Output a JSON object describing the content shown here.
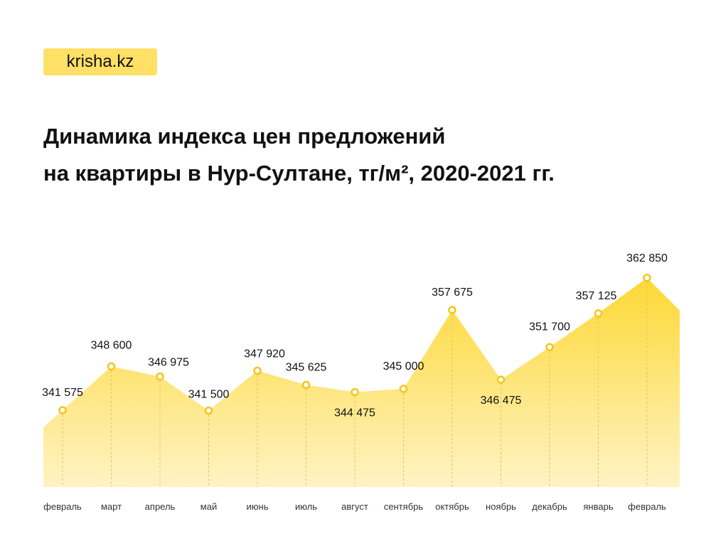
{
  "brand": {
    "logo_text": "krisha.kz",
    "accent": "#ffe066"
  },
  "chart_data": {
    "type": "area",
    "title": "Динамика индекса цен предложений",
    "subtitle": "на квартиры в Нур-Султане, тг/м², 2020-2021 гг.",
    "categories": [
      "февраль",
      "март",
      "апрель",
      "май",
      "июнь",
      "июль",
      "август",
      "сентябрь",
      "октябрь",
      "ноябрь",
      "декабрь",
      "январь",
      "февраль"
    ],
    "values": [
      341575,
      348600,
      346975,
      341500,
      347920,
      345625,
      344475,
      345000,
      357675,
      346475,
      351700,
      357125,
      362850
    ],
    "value_labels": [
      "341 575",
      "348 600",
      "346 975",
      "341 500",
      "347 920",
      "345 625",
      "344 475",
      "345 000",
      "357 675",
      "346 475",
      "351 700",
      "357 125",
      "362 850"
    ],
    "fill_top_color": "#fdd835",
    "fill_bottom_color": "#fff3c4",
    "grid": false,
    "legend": "none"
  }
}
